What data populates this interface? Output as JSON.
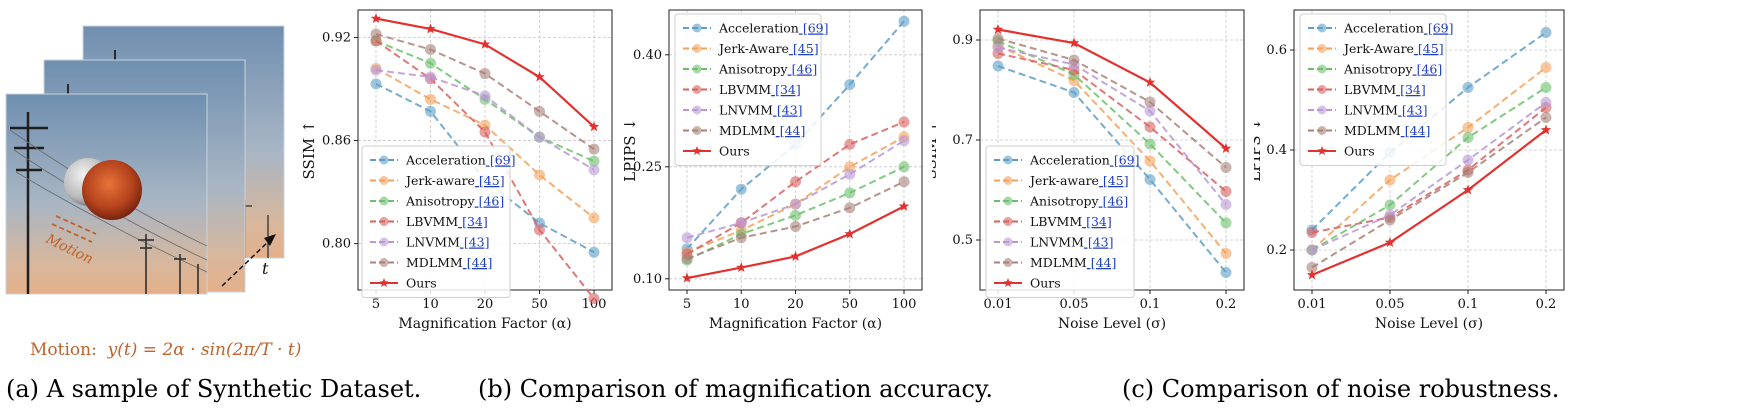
{
  "captions": {
    "a": "(a) A sample of Synthetic Dataset.",
    "b": "(b) Comparison of magnification accuracy.",
    "c": "(c) Comparison of noise robustness."
  },
  "sample": {
    "motion_label": "Motion",
    "time_label": "t",
    "formula_prefix": "Motion:",
    "formula": "y(t) = 2α · sin(2π/T · t)"
  },
  "colors": {
    "Acceleration": "#5d9ec8",
    "Jerk-aware": "#f4a15b",
    "Anisotropy": "#6cbf6c",
    "LBVMM": "#d9605f",
    "LNVMM": "#b997d6",
    "MDLMM": "#a98178",
    "Ours": "#e3312f",
    "cite": "#1f3fbf",
    "motion": "#c0622a"
  },
  "chart_data": [
    {
      "type": "line",
      "panel": "b-ssim",
      "xlabel": "Magnification Factor (α)",
      "ylabel": "SSIM ↑",
      "categories": [
        "5",
        "10",
        "20",
        "50",
        "100"
      ],
      "ylim": [
        0.773,
        0.936
      ],
      "yticks": [
        0.8,
        0.86,
        0.92
      ],
      "ytick_labels": [
        "0.80",
        "0.86",
        "0.92"
      ],
      "grid": true,
      "legend": "lower-left",
      "series": [
        {
          "name": "Acceleration",
          "cite": "[69]",
          "values": [
            0.893,
            0.877,
            0.837,
            0.812,
            0.795
          ]
        },
        {
          "name": "Jerk-aware",
          "cite": "[45]",
          "values": [
            0.902,
            0.884,
            0.869,
            0.84,
            0.815
          ]
        },
        {
          "name": "Anisotropy",
          "cite": "[46]",
          "values": [
            0.918,
            0.905,
            0.884,
            0.862,
            0.848
          ]
        },
        {
          "name": "LBVMM",
          "cite": "[34]",
          "values": [
            0.918,
            0.896,
            0.865,
            0.808,
            0.768
          ]
        },
        {
          "name": "LNVMM",
          "cite": "[43]",
          "values": [
            0.901,
            0.897,
            0.886,
            0.862,
            0.843
          ]
        },
        {
          "name": "MDLMM",
          "cite": "[44]",
          "values": [
            0.922,
            0.913,
            0.899,
            0.877,
            0.855
          ]
        },
        {
          "name": "Ours",
          "cite": "",
          "values": [
            0.931,
            0.925,
            0.916,
            0.897,
            0.868
          ]
        }
      ]
    },
    {
      "type": "line",
      "panel": "b-lpips",
      "xlabel": "Magnification Factor (α)",
      "ylabel": "LPIPS ↓",
      "categories": [
        "5",
        "10",
        "20",
        "50",
        "100"
      ],
      "ylim": [
        0.085,
        0.46
      ],
      "yticks": [
        0.1,
        0.25,
        0.4
      ],
      "ytick_labels": [
        "0.10",
        "0.25",
        "0.40"
      ],
      "grid": true,
      "legend": "upper-left",
      "series": [
        {
          "name": "Acceleration",
          "cite": "[69]",
          "values": [
            0.14,
            0.22,
            0.28,
            0.36,
            0.445
          ]
        },
        {
          "name": "Jerk-Aware",
          "cite": "[45]",
          "values": [
            0.135,
            0.165,
            0.2,
            0.25,
            0.29
          ]
        },
        {
          "name": "Anisotropy",
          "cite": "[46]",
          "values": [
            0.125,
            0.16,
            0.185,
            0.215,
            0.25
          ]
        },
        {
          "name": "LBVMM",
          "cite": "[34]",
          "values": [
            0.133,
            0.175,
            0.23,
            0.28,
            0.31
          ]
        },
        {
          "name": "LNVMM",
          "cite": "[43]",
          "values": [
            0.155,
            0.175,
            0.2,
            0.24,
            0.285
          ]
        },
        {
          "name": "MDLMM",
          "cite": "[44]",
          "values": [
            0.127,
            0.155,
            0.17,
            0.195,
            0.23
          ]
        },
        {
          "name": "Ours",
          "cite": "",
          "values": [
            0.101,
            0.115,
            0.13,
            0.16,
            0.197
          ]
        }
      ]
    },
    {
      "type": "line",
      "panel": "c-ssim",
      "xlabel": "Noise Level (σ)",
      "ylabel": "SSIM ↑",
      "categories": [
        "0.01",
        "0.05",
        "0.1",
        "0.2"
      ],
      "ylim": [
        0.4,
        0.96
      ],
      "yticks": [
        0.5,
        0.7,
        0.9
      ],
      "ytick_labels": [
        "0.5",
        "0.7",
        "0.9"
      ],
      "grid": true,
      "legend": "lower-left",
      "series": [
        {
          "name": "Acceleration",
          "cite": "[69]",
          "values": [
            0.848,
            0.795,
            0.621,
            0.435
          ]
        },
        {
          "name": "Jerk-aware",
          "cite": "[45]",
          "values": [
            0.889,
            0.819,
            0.658,
            0.473
          ]
        },
        {
          "name": "Anisotropy",
          "cite": "[46]",
          "values": [
            0.898,
            0.831,
            0.692,
            0.534
          ]
        },
        {
          "name": "LBVMM",
          "cite": "[34]",
          "values": [
            0.873,
            0.84,
            0.726,
            0.597
          ]
        },
        {
          "name": "LNVMM",
          "cite": "[43]",
          "values": [
            0.885,
            0.851,
            0.758,
            0.571
          ]
        },
        {
          "name": "MDLMM",
          "cite": "[44]",
          "values": [
            0.903,
            0.86,
            0.776,
            0.645
          ]
        },
        {
          "name": "Ours",
          "cite": "",
          "values": [
            0.921,
            0.894,
            0.815,
            0.683
          ]
        }
      ]
    },
    {
      "type": "line",
      "panel": "c-lpips",
      "xlabel": "Noise Level (σ)",
      "ylabel": "LPIPS ↓",
      "categories": [
        "0.01",
        "0.05",
        "0.1",
        "0.2"
      ],
      "ylim": [
        0.12,
        0.68
      ],
      "yticks": [
        0.2,
        0.4,
        0.6
      ],
      "ytick_labels": [
        "0.2",
        "0.4",
        "0.6"
      ],
      "grid": true,
      "legend": "upper-left",
      "series": [
        {
          "name": "Acceleration",
          "cite": "[69]",
          "values": [
            0.24,
            0.395,
            0.525,
            0.635
          ]
        },
        {
          "name": "Jerk-Aware",
          "cite": "[45]",
          "values": [
            0.2,
            0.34,
            0.445,
            0.565
          ]
        },
        {
          "name": "Anisotropy",
          "cite": "[46]",
          "values": [
            0.2,
            0.29,
            0.425,
            0.525
          ]
        },
        {
          "name": "LBVMM",
          "cite": "[34]",
          "values": [
            0.235,
            0.265,
            0.36,
            0.485
          ]
        },
        {
          "name": "LNVMM",
          "cite": "[43]",
          "values": [
            0.2,
            0.27,
            0.38,
            0.495
          ]
        },
        {
          "name": "MDLMM",
          "cite": "[44]",
          "values": [
            0.165,
            0.26,
            0.355,
            0.465
          ]
        },
        {
          "name": "Ours",
          "cite": "",
          "values": [
            0.15,
            0.215,
            0.32,
            0.44
          ]
        }
      ]
    }
  ]
}
